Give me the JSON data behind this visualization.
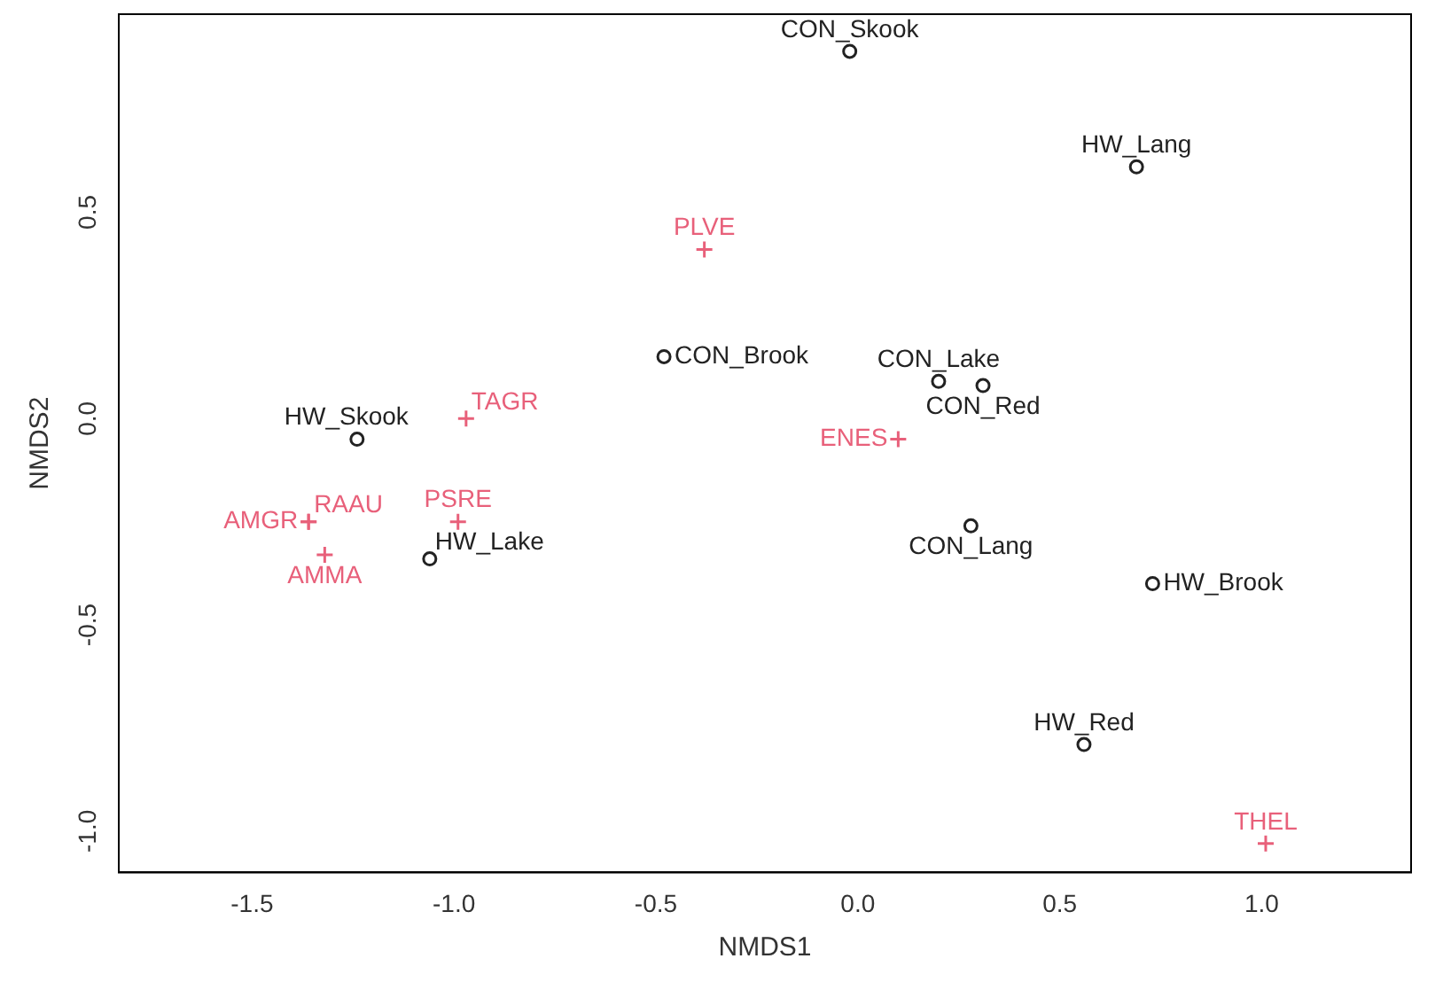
{
  "chart_data": {
    "type": "scatter",
    "xlabel": "NMDS1",
    "ylabel": "NMDS2",
    "xlim": [
      -1.83,
      1.37
    ],
    "xticks": [
      -1.5,
      {
        "value": -1,
        "label": "-1.0"
      },
      -0.5,
      {
        "value": 0,
        "label": "0.0"
      },
      0.5,
      {
        "value": 1,
        "label": "1.0"
      }
    ],
    "ylim": [
      -1.1,
      0.98
    ],
    "yticks": [
      {
        "value": -1,
        "label": "-1.0"
      },
      -0.5,
      {
        "value": 0,
        "label": "0.0"
      },
      0.5
    ],
    "grid": false,
    "legend": false,
    "series": [
      {
        "color": "#222222",
        "marker": "circle",
        "x": [
          -0.02,
          0.69,
          -0.48,
          0.2,
          0.31,
          -1.24,
          -1.06,
          0.28,
          0.73,
          0.56
        ],
        "values": [
          0.89,
          0.61,
          0.15,
          0.09,
          0.08,
          -0.05,
          -0.34,
          -0.26,
          -0.4,
          -0.79
        ],
        "value_labels": [
          "CON_Skook",
          "HW_Lang",
          "CON_Brook",
          "CON_Lake",
          "CON_Red",
          "HW_Skook",
          "HW_Lake",
          "CON_Lang",
          "HW_Brook",
          "HW_Red"
        ]
      },
      {
        "color": "#e8607a",
        "marker": "cross",
        "x": [
          -0.38,
          -0.97,
          0.1,
          -0.99,
          -1.36,
          -1.36,
          -1.32,
          1.01
        ],
        "values": [
          0.41,
          0.0,
          -0.05,
          -0.25,
          -0.25,
          -0.25,
          -0.33,
          -1.03
        ],
        "value_labels": [
          "PLVE",
          "TAGR",
          "ENES",
          "PSRE",
          "AMGR",
          "RAAU",
          "AMMA",
          "THEL"
        ]
      }
    ]
  }
}
